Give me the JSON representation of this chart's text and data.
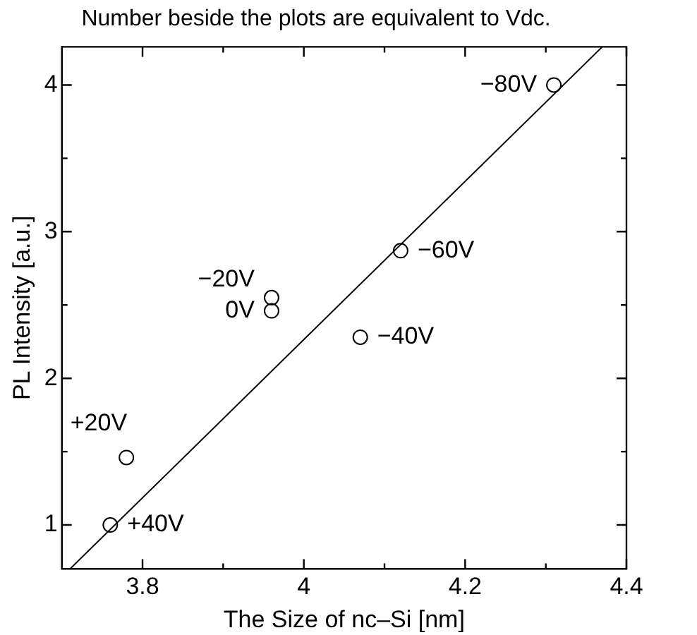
{
  "chart_data": {
    "type": "scatter",
    "title": "Number beside the plots are equivalent to Vdc.",
    "xlabel": "The Size of nc–Si [nm]",
    "ylabel": "PL Intensity [a.u.]",
    "xlim": [
      3.7,
      4.4
    ],
    "ylim": [
      0.7,
      4.26
    ],
    "xticks": [
      3.8,
      {
        "value": 3.9,
        "label": null
      },
      4,
      {
        "value": 4.1,
        "label": null
      },
      4.2,
      {
        "value": 4.3,
        "label": null
      },
      4.4
    ],
    "yticks": [
      1,
      {
        "value": 1.5,
        "label": null
      },
      2,
      {
        "value": 2.5,
        "label": null
      },
      3,
      {
        "value": 3.5,
        "label": null
      },
      4
    ],
    "grid": false,
    "legend": false,
    "series": [
      {
        "color": "#000000",
        "marker": "circle",
        "x": [
          3.76,
          3.78,
          3.96,
          3.96,
          4.07,
          4.12,
          4.31
        ],
        "values": [
          1.0,
          1.46,
          2.46,
          2.55,
          2.28,
          2.87,
          4.0
        ]
      },
      {
        "type": "line",
        "color": "#000000",
        "x": [
          3.71,
          4.37
        ],
        "values": [
          0.7,
          4.26
        ]
      }
    ],
    "annotations": [
      {
        "text": "+40V",
        "x": 3.76,
        "y": 1.0
      },
      {
        "text": "+20V",
        "x": 3.78,
        "y": 1.46
      },
      {
        "text": "0V",
        "x": 3.96,
        "y": 2.46
      },
      {
        "text": "−20V",
        "x": 3.96,
        "y": 2.55
      },
      {
        "text": "−40V",
        "x": 4.07,
        "y": 2.28
      },
      {
        "text": "−60V",
        "x": 4.12,
        "y": 2.87
      },
      {
        "text": "−80V",
        "x": 4.31,
        "y": 4.0
      }
    ]
  }
}
